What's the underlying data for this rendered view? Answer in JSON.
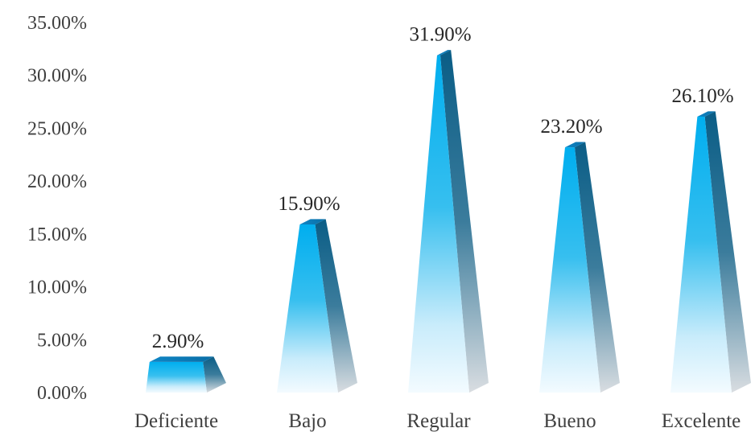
{
  "chart_data": {
    "type": "bar",
    "bar_shape": "pyramid",
    "categories": [
      "Deficiente",
      "Bajo",
      "Regular",
      "Bueno",
      "Excelente"
    ],
    "values": [
      2.9,
      15.9,
      31.9,
      23.2,
      26.1
    ],
    "data_labels": [
      "2.90%",
      "15.90%",
      "31.90%",
      "23.20%",
      "26.10%"
    ],
    "y_tick_labels": [
      "0.00%",
      "5.00%",
      "10.00%",
      "15.00%",
      "20.00%",
      "25.00%",
      "30.00%",
      "35.00%"
    ],
    "ylim": [
      0,
      35
    ],
    "y_step": 5,
    "grid": false,
    "legend": "none",
    "colors": {
      "bar_top": "#00aeef",
      "bar_mid": "#37bfef",
      "bar_bottom": "#f3fbff",
      "side_top": "#0a5d86",
      "side_bottom": "#d9dde1",
      "cap_top": "#0f86c6",
      "text": "#404040"
    }
  }
}
